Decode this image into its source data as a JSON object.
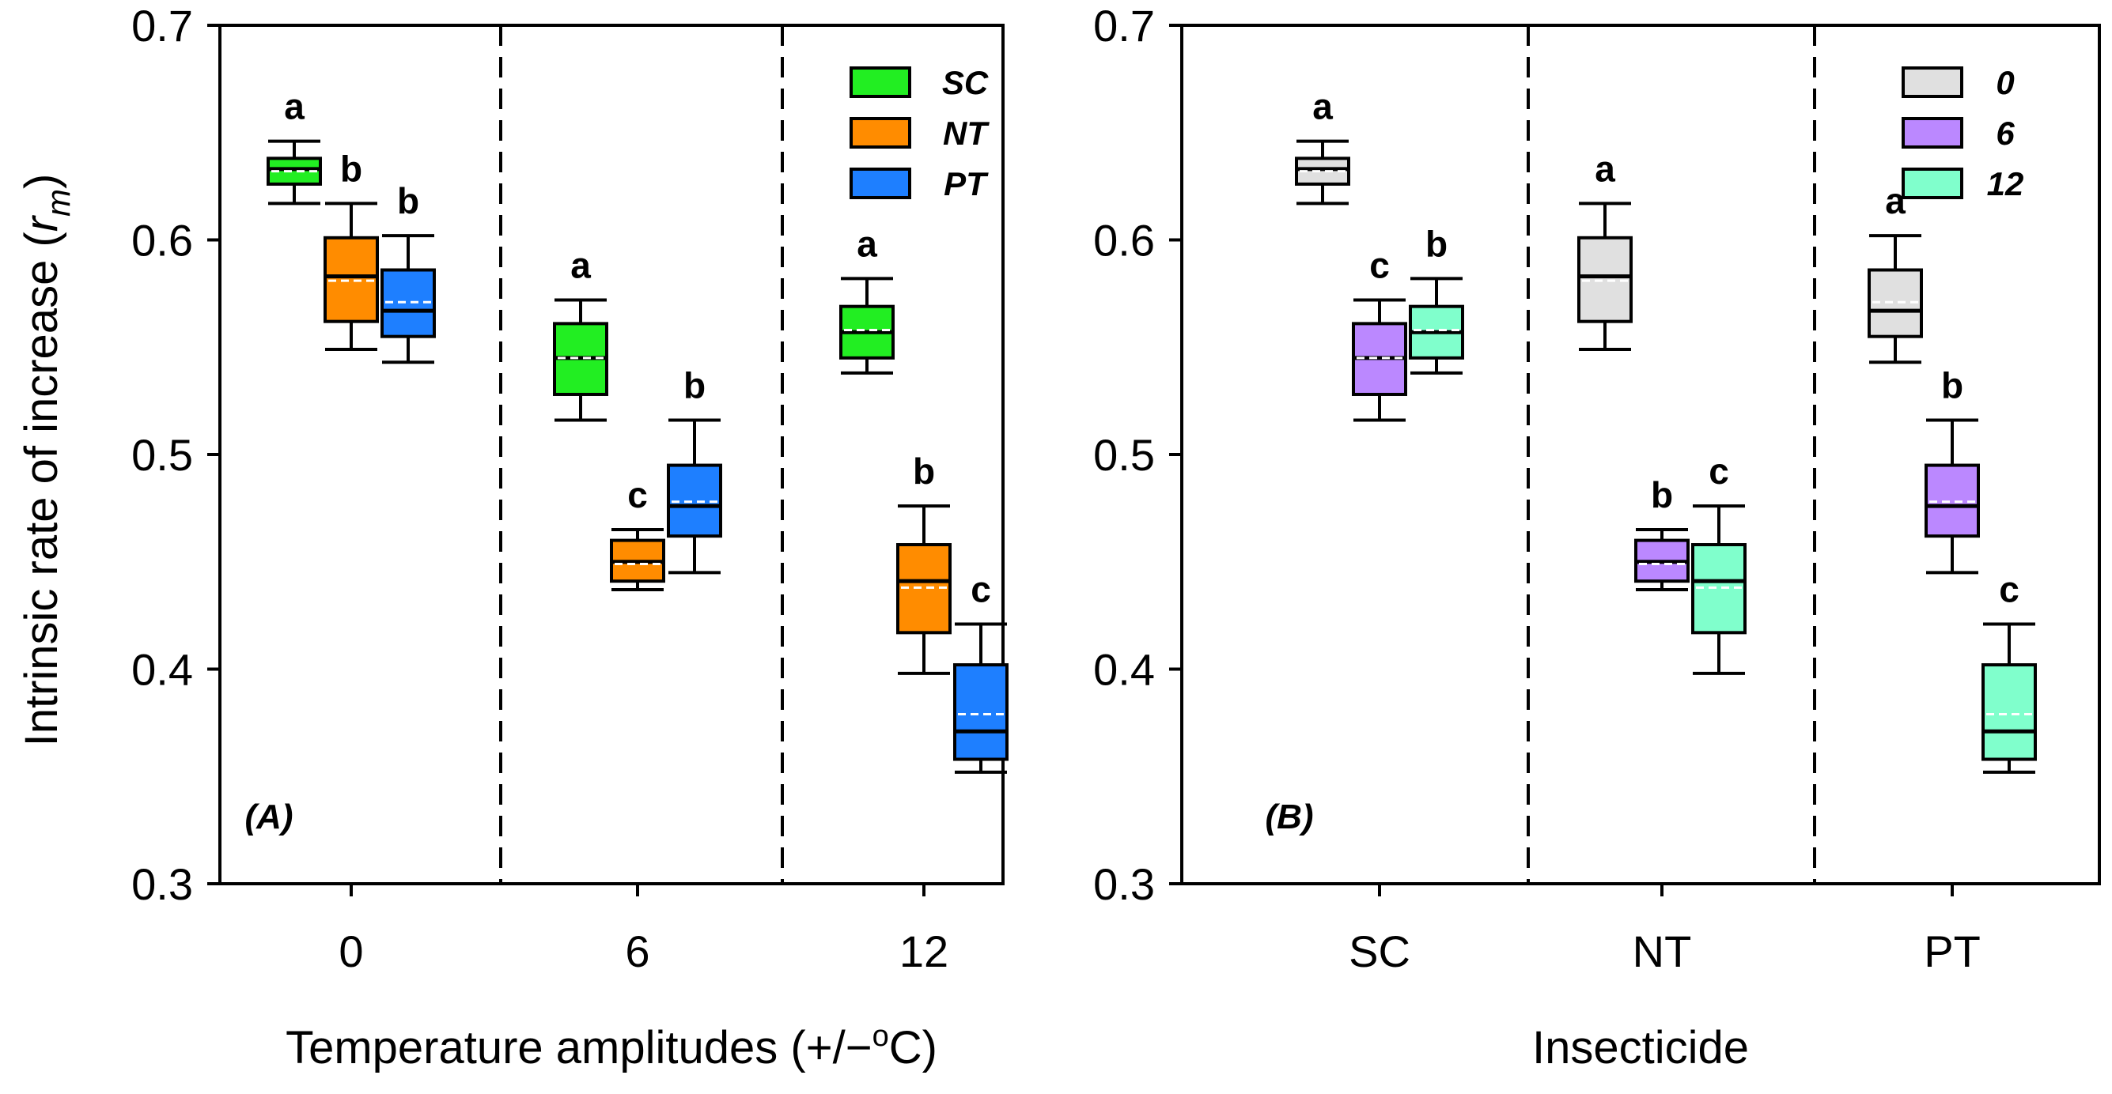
{
  "chart_data": [
    {
      "type": "box",
      "panel_label": "(A)",
      "ylabel_main": "Intrinsic rate of increase (",
      "ylabel_symbol": "r",
      "ylabel_subscript": "m",
      "ylabel_close": ")",
      "xlabel_main": "Temperature amplitudes (+/−",
      "xlabel_superscript": "o",
      "xlabel_unit": "C)",
      "ylim": [
        0.3,
        0.7
      ],
      "yticks": [
        "0.3",
        "0.4",
        "0.5",
        "0.6",
        "0.7"
      ],
      "groups": [
        "0",
        "6",
        "12"
      ],
      "legend": [
        {
          "name": "SC",
          "color": "#22ee22"
        },
        {
          "name": "NT",
          "color": "#ff8c00"
        },
        {
          "name": "PT",
          "color": "#1e7fff"
        }
      ],
      "boxes": [
        {
          "group": "0",
          "series": "SC",
          "color": "#22ee22",
          "whisker_low": 0.617,
          "q1": 0.626,
          "median": 0.633,
          "mean": 0.632,
          "q3": 0.638,
          "whisker_high": 0.646,
          "letter": "a"
        },
        {
          "group": "0",
          "series": "NT",
          "color": "#ff8c00",
          "whisker_low": 0.549,
          "q1": 0.562,
          "median": 0.583,
          "mean": 0.581,
          "q3": 0.601,
          "whisker_high": 0.617,
          "letter": "b"
        },
        {
          "group": "0",
          "series": "PT",
          "color": "#1e7fff",
          "whisker_low": 0.543,
          "q1": 0.555,
          "median": 0.567,
          "mean": 0.571,
          "q3": 0.586,
          "whisker_high": 0.602,
          "letter": "b"
        },
        {
          "group": "6",
          "series": "SC",
          "color": "#22ee22",
          "whisker_low": 0.516,
          "q1": 0.528,
          "median": 0.545,
          "mean": 0.545,
          "q3": 0.561,
          "whisker_high": 0.572,
          "letter": "a"
        },
        {
          "group": "6",
          "series": "NT",
          "color": "#ff8c00",
          "whisker_low": 0.437,
          "q1": 0.441,
          "median": 0.45,
          "mean": 0.449,
          "q3": 0.46,
          "whisker_high": 0.465,
          "letter": "c"
        },
        {
          "group": "6",
          "series": "PT",
          "color": "#1e7fff",
          "whisker_low": 0.445,
          "q1": 0.462,
          "median": 0.476,
          "mean": 0.478,
          "q3": 0.495,
          "whisker_high": 0.516,
          "letter": "b"
        },
        {
          "group": "12",
          "series": "SC",
          "color": "#22ee22",
          "whisker_low": 0.538,
          "q1": 0.545,
          "median": 0.557,
          "mean": 0.558,
          "q3": 0.569,
          "whisker_high": 0.582,
          "letter": "a"
        },
        {
          "group": "12",
          "series": "NT",
          "color": "#ff8c00",
          "whisker_low": 0.398,
          "q1": 0.417,
          "median": 0.441,
          "mean": 0.438,
          "q3": 0.458,
          "whisker_high": 0.476,
          "letter": "b"
        },
        {
          "group": "12",
          "series": "PT",
          "color": "#1e7fff",
          "whisker_low": 0.352,
          "q1": 0.358,
          "median": 0.371,
          "mean": 0.379,
          "q3": 0.402,
          "whisker_high": 0.421,
          "letter": "c"
        }
      ]
    },
    {
      "type": "box",
      "panel_label": "(B)",
      "xlabel_main": "Insecticide",
      "ylim": [
        0.3,
        0.7
      ],
      "yticks": [
        "0.3",
        "0.4",
        "0.5",
        "0.6",
        "0.7"
      ],
      "groups": [
        "SC",
        "NT",
        "PT"
      ],
      "legend": [
        {
          "name": "0",
          "color": "#e0e0e0"
        },
        {
          "name": "6",
          "color": "#bb88ff"
        },
        {
          "name": "12",
          "color": "#80ffcc"
        }
      ],
      "boxes": [
        {
          "group": "SC",
          "series": "0",
          "color": "#e0e0e0",
          "whisker_low": 0.617,
          "q1": 0.626,
          "median": 0.633,
          "mean": 0.632,
          "q3": 0.638,
          "whisker_high": 0.646,
          "letter": "a"
        },
        {
          "group": "SC",
          "series": "6",
          "color": "#bb88ff",
          "whisker_low": 0.516,
          "q1": 0.528,
          "median": 0.545,
          "mean": 0.545,
          "q3": 0.561,
          "whisker_high": 0.572,
          "letter": "c"
        },
        {
          "group": "SC",
          "series": "12",
          "color": "#80ffcc",
          "whisker_low": 0.538,
          "q1": 0.545,
          "median": 0.557,
          "mean": 0.558,
          "q3": 0.569,
          "whisker_high": 0.582,
          "letter": "b"
        },
        {
          "group": "NT",
          "series": "0",
          "color": "#e0e0e0",
          "whisker_low": 0.549,
          "q1": 0.562,
          "median": 0.583,
          "mean": 0.581,
          "q3": 0.601,
          "whisker_high": 0.617,
          "letter": "a"
        },
        {
          "group": "NT",
          "series": "6",
          "color": "#bb88ff",
          "whisker_low": 0.437,
          "q1": 0.441,
          "median": 0.45,
          "mean": 0.449,
          "q3": 0.46,
          "whisker_high": 0.465,
          "letter": "b"
        },
        {
          "group": "NT",
          "series": "12",
          "color": "#80ffcc",
          "whisker_low": 0.398,
          "q1": 0.417,
          "median": 0.441,
          "mean": 0.438,
          "q3": 0.458,
          "whisker_high": 0.476,
          "letter": "c"
        },
        {
          "group": "PT",
          "series": "0",
          "color": "#e0e0e0",
          "whisker_low": 0.543,
          "q1": 0.555,
          "median": 0.567,
          "mean": 0.571,
          "q3": 0.586,
          "whisker_high": 0.602,
          "letter": "a"
        },
        {
          "group": "PT",
          "series": "6",
          "color": "#bb88ff",
          "whisker_low": 0.445,
          "q1": 0.462,
          "median": 0.476,
          "mean": 0.478,
          "q3": 0.495,
          "whisker_high": 0.516,
          "letter": "b"
        },
        {
          "group": "PT",
          "series": "12",
          "color": "#80ffcc",
          "whisker_low": 0.352,
          "q1": 0.358,
          "median": 0.371,
          "mean": 0.379,
          "q3": 0.402,
          "whisker_high": 0.421,
          "letter": "c"
        }
      ]
    }
  ]
}
